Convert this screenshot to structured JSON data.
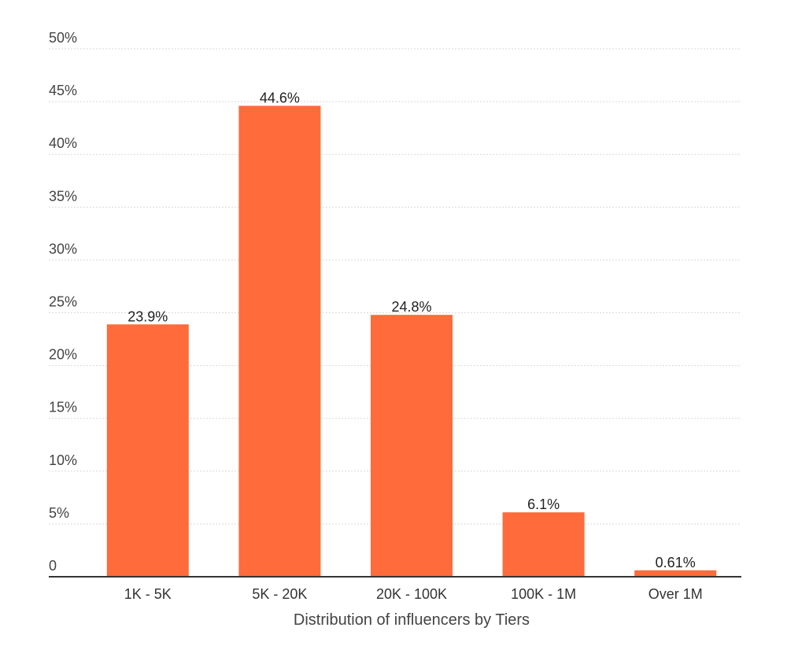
{
  "chart_data": {
    "type": "bar",
    "categories": [
      "1K - 5K",
      "5K - 20K",
      "20K - 100K",
      "100K - 1M",
      "Over 1M"
    ],
    "values": [
      23.9,
      44.6,
      24.8,
      6.1,
      0.61
    ],
    "data_labels": [
      "23.9%",
      "44.6%",
      "24.8%",
      "6.1%",
      "0.61%"
    ],
    "title": "",
    "xlabel": "Distribution of influencers by Tiers",
    "ylabel": "",
    "ylim": [
      0,
      50
    ],
    "yticks": [
      0,
      5,
      10,
      15,
      20,
      25,
      30,
      35,
      40,
      45,
      50
    ],
    "ytick_labels": [
      "0",
      "5%",
      "10%",
      "15%",
      "20%",
      "25%",
      "30%",
      "35%",
      "40%",
      "45%",
      "50%"
    ],
    "grid": true,
    "legend": "none",
    "bar_color": "#ff6b3a"
  }
}
